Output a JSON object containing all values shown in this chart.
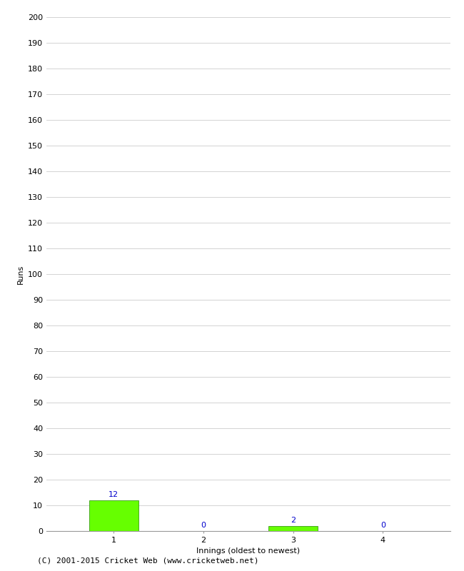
{
  "categories": [
    1,
    2,
    3,
    4
  ],
  "values": [
    12,
    0,
    2,
    0
  ],
  "bar_color": "#66ff00",
  "bar_edge_color": "#228800",
  "xlabel": "Innings (oldest to newest)",
  "ylabel": "Runs",
  "ylim": [
    0,
    200
  ],
  "yticks": [
    0,
    10,
    20,
    30,
    40,
    50,
    60,
    70,
    80,
    90,
    100,
    110,
    120,
    130,
    140,
    150,
    160,
    170,
    180,
    190,
    200
  ],
  "value_label_color": "#0000cc",
  "value_label_fontsize": 8,
  "axis_label_fontsize": 8,
  "tick_label_fontsize": 8,
  "footer_text": "(C) 2001-2015 Cricket Web (www.cricketweb.net)",
  "footer_fontsize": 8,
  "background_color": "#ffffff",
  "grid_color": "#cccccc",
  "spine_color": "#999999"
}
